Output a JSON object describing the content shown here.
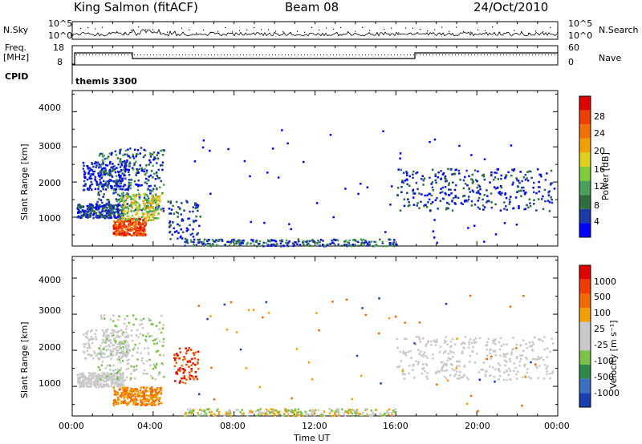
{
  "header": {
    "station": "King Salmon (fitACF)",
    "beam": "Beam 08",
    "date": "24/Oct/2010"
  },
  "top_panels": {
    "nsky_label": "N.Sky",
    "nsky_ticks": [
      "10^5",
      "10^0"
    ],
    "nsearch_label": "N.Search",
    "nsearch_ticks": [
      "10^5",
      "10^0"
    ],
    "freq_label": "Freq.",
    "freq_unit": "[MHz]",
    "freq_ticks": [
      "18",
      "8"
    ],
    "nave_label": "Nave",
    "nave_ticks": [
      "60",
      "0"
    ],
    "cpid_label": "CPID",
    "cpid_value": "themis 3300"
  },
  "chart_data": [
    {
      "type": "heatmap",
      "name": "power",
      "ylabel": "Slant Range [km]",
      "yticks": [
        "4000",
        "3000",
        "2000",
        "1000"
      ],
      "ylim": [
        180,
        4600
      ],
      "xlim": [
        0,
        24
      ],
      "colorbar": {
        "label": "Power [dB]",
        "ticks": [
          "28",
          "24",
          "20",
          "16",
          "12",
          "8",
          "4"
        ],
        "colors": [
          "#0000ff",
          "#1b3aa8",
          "#2e6e3a",
          "#4aa05a",
          "#7fcc3a",
          "#e0d020",
          "#f0a000",
          "#f07000",
          "#f04000",
          "#e00000"
        ]
      }
    },
    {
      "type": "heatmap",
      "name": "velocity",
      "ylabel": "Slant Range [km]",
      "yticks": [
        "4000",
        "3000",
        "2000",
        "1000"
      ],
      "ylim": [
        180,
        4600
      ],
      "xlim": [
        0,
        24
      ],
      "colorbar": {
        "label": "Velocity [m s⁻¹]",
        "ticks": [
          "1000",
          "500",
          "100",
          "25",
          "-25",
          "-100",
          "-500",
          "-1000"
        ],
        "colors": [
          "#1a3fb0",
          "#3a70c0",
          "#2e8a4a",
          "#7cc24a",
          "#c8c8c8",
          "#c8c8c8",
          "#f0a000",
          "#f06a00",
          "#f03a00",
          "#e00000"
        ]
      }
    }
  ],
  "xaxis": {
    "ticks": [
      "00:00",
      "04:00",
      "08:00",
      "12:00",
      "16:00",
      "20:00",
      "00:00"
    ],
    "label": "Time UT"
  }
}
